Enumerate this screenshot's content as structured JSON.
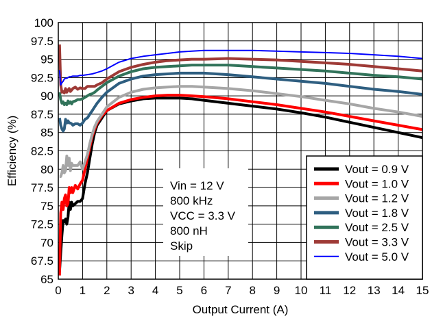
{
  "chart_data": {
    "type": "line",
    "title": "",
    "xlabel": "Output Current (A)",
    "ylabel": "Efficiency (%)",
    "xlim": [
      0,
      15
    ],
    "ylim": [
      65,
      100
    ],
    "grid": true,
    "x_ticks": [
      0,
      1,
      2,
      3,
      4,
      5,
      6,
      7,
      8,
      9,
      10,
      11,
      12,
      13,
      14,
      15
    ],
    "x_tick_labels": [
      "0",
      "1",
      "2",
      "3",
      "4",
      "5",
      "6",
      "7",
      "8",
      "9",
      "10",
      "11",
      "12",
      "13",
      "14",
      "15"
    ],
    "y_ticks": [
      65,
      67.5,
      70,
      72.5,
      75,
      77.5,
      80,
      82.5,
      85,
      87.5,
      90,
      92.5,
      95,
      97.5,
      100
    ],
    "y_tick_labels": [
      "65",
      "67.5",
      "70",
      "72.5",
      "75",
      "77.5",
      "80",
      "82.5",
      "85",
      "87.5",
      "90",
      "92.5",
      "95",
      "97.5",
      "100"
    ],
    "annotation": [
      "Vin = 12 V",
      "800 kHz",
      "VCC = 3.3 V",
      "800 nH",
      "Skip"
    ],
    "legend_position": "bottom-right",
    "series": [
      {
        "name": "Vout = 0.9 V",
        "color": "#000000",
        "x": [
          0.05,
          0.1,
          0.15,
          0.2,
          0.25,
          0.3,
          0.35,
          0.4,
          0.45,
          0.5,
          0.55,
          0.6,
          0.7,
          0.8,
          0.9,
          1.0,
          1.1,
          1.2,
          1.3,
          1.4,
          1.5,
          1.6,
          1.8,
          2.0,
          2.5,
          3.0,
          3.5,
          4.0,
          4.5,
          5.0,
          5.5,
          6.0,
          7.0,
          8.0,
          9.0,
          10.0,
          11.0,
          12.0,
          13.0,
          14.0,
          15.0
        ],
        "y": [
          66.0,
          68.5,
          71.0,
          73.0,
          72.8,
          73.2,
          72.5,
          73.5,
          75.5,
          74.5,
          75.5,
          75.0,
          75.3,
          75.6,
          75.6,
          76.0,
          78.0,
          79.5,
          81.5,
          83.5,
          85.0,
          86.0,
          87.0,
          88.0,
          88.9,
          89.3,
          89.6,
          89.7,
          89.7,
          89.7,
          89.6,
          89.4,
          89.0,
          88.6,
          88.2,
          87.7,
          87.1,
          86.4,
          85.7,
          85.0,
          84.3
        ]
      },
      {
        "name": "Vout = 1.0 V",
        "color": "#ff0000",
        "x": [
          0.05,
          0.1,
          0.15,
          0.2,
          0.25,
          0.3,
          0.35,
          0.4,
          0.45,
          0.5,
          0.55,
          0.6,
          0.7,
          0.8,
          0.9,
          1.0,
          1.1,
          1.2,
          1.3,
          1.4,
          1.5,
          1.6,
          1.8,
          2.0,
          2.5,
          3.0,
          3.5,
          4.0,
          4.5,
          5.0,
          5.5,
          6.0,
          7.0,
          8.0,
          9.0,
          10.0,
          11.0,
          12.0,
          13.0,
          14.0,
          15.0
        ],
        "y": [
          65.5,
          74.0,
          75.5,
          74.5,
          76.0,
          76.5,
          75.0,
          75.3,
          77.5,
          76.8,
          77.5,
          76.8,
          77.8,
          77.3,
          78.0,
          78.5,
          80.0,
          81.5,
          83.0,
          84.5,
          85.5,
          86.3,
          87.3,
          88.0,
          89.0,
          89.5,
          89.8,
          90.0,
          90.1,
          90.1,
          90.0,
          89.9,
          89.6,
          89.2,
          88.8,
          88.3,
          87.8,
          87.2,
          86.6,
          86.0,
          85.4
        ]
      },
      {
        "name": "Vout = 1.2 V",
        "color": "#a6a6a6",
        "x": [
          0.05,
          0.1,
          0.15,
          0.2,
          0.25,
          0.3,
          0.35,
          0.4,
          0.45,
          0.5,
          0.55,
          0.6,
          0.7,
          0.8,
          0.9,
          1.0,
          1.1,
          1.2,
          1.3,
          1.4,
          1.5,
          1.6,
          1.8,
          2.0,
          2.5,
          3.0,
          3.5,
          4.0,
          4.5,
          5.0,
          5.5,
          6.0,
          7.0,
          8.0,
          9.0,
          10.0,
          11.0,
          12.0,
          13.0,
          14.0,
          15.0
        ],
        "y": [
          79.0,
          79.0,
          79.5,
          80.5,
          79.5,
          79.8,
          81.8,
          80.5,
          81.5,
          79.8,
          80.8,
          80.5,
          80.5,
          80.5,
          81.0,
          80.0,
          81.0,
          82.0,
          83.5,
          84.8,
          85.8,
          86.5,
          87.5,
          88.5,
          89.8,
          90.5,
          90.9,
          91.1,
          91.2,
          91.3,
          91.3,
          91.2,
          91.0,
          90.7,
          90.3,
          89.9,
          89.4,
          88.9,
          88.3,
          87.8,
          87.2
        ]
      },
      {
        "name": "Vout = 1.8 V",
        "color": "#2e5e80",
        "x": [
          0.05,
          0.1,
          0.15,
          0.2,
          0.25,
          0.3,
          0.35,
          0.4,
          0.45,
          0.5,
          0.55,
          0.6,
          0.7,
          0.8,
          0.9,
          1.0,
          1.1,
          1.2,
          1.3,
          1.4,
          1.5,
          1.6,
          1.8,
          2.0,
          2.5,
          3.0,
          3.5,
          4.0,
          4.5,
          5.0,
          5.5,
          6.0,
          7.0,
          8.0,
          9.0,
          10.0,
          11.0,
          12.0,
          13.0,
          14.0,
          15.0
        ],
        "y": [
          87.0,
          86.0,
          85.5,
          85.2,
          85.5,
          86.8,
          86.3,
          86.6,
          86.3,
          86.3,
          86.2,
          86.0,
          86.2,
          86.2,
          86.0,
          86.3,
          86.8,
          87.0,
          87.5,
          88.0,
          88.5,
          89.0,
          89.8,
          90.5,
          91.7,
          92.3,
          92.7,
          92.9,
          93.0,
          93.1,
          93.1,
          93.1,
          92.9,
          92.6,
          92.3,
          92.0,
          91.7,
          91.3,
          90.9,
          90.6,
          90.2
        ]
      },
      {
        "name": "Vout = 2.5 V",
        "color": "#31735a",
        "x": [
          0.05,
          0.1,
          0.15,
          0.2,
          0.25,
          0.3,
          0.35,
          0.4,
          0.45,
          0.5,
          0.55,
          0.6,
          0.7,
          0.8,
          0.9,
          1.0,
          1.1,
          1.2,
          1.3,
          1.4,
          1.5,
          1.6,
          1.8,
          2.0,
          2.5,
          3.0,
          3.5,
          4.0,
          4.5,
          5.0,
          5.5,
          6.0,
          7.0,
          8.0,
          9.0,
          10.0,
          11.0,
          12.0,
          13.0,
          14.0,
          15.0
        ],
        "y": [
          90.5,
          89.5,
          89.0,
          89.2,
          88.8,
          89.0,
          88.8,
          89.3,
          89.0,
          89.2,
          88.9,
          89.2,
          89.3,
          89.5,
          89.5,
          89.6,
          89.8,
          90.0,
          90.2,
          90.3,
          90.5,
          90.8,
          91.3,
          91.8,
          92.7,
          93.3,
          93.7,
          93.9,
          94.0,
          94.1,
          94.2,
          94.2,
          94.2,
          94.0,
          93.8,
          93.6,
          93.4,
          93.1,
          92.8,
          92.6,
          92.3
        ]
      },
      {
        "name": "Vout = 3.3 V",
        "color": "#9e3a36",
        "x": [
          0.05,
          0.1,
          0.15,
          0.2,
          0.25,
          0.3,
          0.35,
          0.4,
          0.45,
          0.5,
          0.55,
          0.6,
          0.7,
          0.8,
          0.9,
          1.0,
          1.1,
          1.2,
          1.3,
          1.4,
          1.5,
          1.6,
          1.8,
          2.0,
          2.5,
          3.0,
          3.5,
          4.0,
          4.5,
          5.0,
          5.5,
          6.0,
          7.0,
          8.0,
          9.0,
          10.0,
          11.0,
          12.0,
          13.0,
          14.0,
          15.0
        ],
        "y": [
          97.0,
          91.5,
          90.5,
          90.6,
          90.4,
          91.0,
          90.5,
          90.8,
          91.0,
          90.6,
          90.8,
          91.0,
          91.2,
          90.9,
          91.1,
          91.0,
          91.0,
          91.3,
          91.3,
          91.3,
          91.3,
          91.5,
          91.8,
          92.3,
          93.3,
          93.9,
          94.3,
          94.6,
          94.8,
          94.9,
          95.0,
          95.0,
          95.1,
          95.0,
          94.9,
          94.7,
          94.5,
          94.3,
          94.0,
          93.7,
          93.4
        ]
      },
      {
        "name": "Vout = 5.0 V",
        "color": "#0000ff",
        "x": [
          0.05,
          0.1,
          0.15,
          0.2,
          0.25,
          0.3,
          0.35,
          0.4,
          0.45,
          0.5,
          0.6,
          0.7,
          0.8,
          0.9,
          1.0,
          1.2,
          1.4,
          1.6,
          1.8,
          2.0,
          2.5,
          3.0,
          3.5,
          4.0,
          4.5,
          5.0,
          5.5,
          6.0,
          7.0,
          8.0,
          9.0,
          10.0,
          11.0,
          12.0,
          13.0,
          14.0,
          15.0
        ],
        "y": [
          93.5,
          91.5,
          91.8,
          92.0,
          92.3,
          92.4,
          92.4,
          92.5,
          92.6,
          92.6,
          92.7,
          92.7,
          92.7,
          92.8,
          92.8,
          92.9,
          93.0,
          93.2,
          93.4,
          93.7,
          94.6,
          95.1,
          95.4,
          95.6,
          95.8,
          96.0,
          96.1,
          96.2,
          96.2,
          96.2,
          96.1,
          96.0,
          95.9,
          95.8,
          95.6,
          95.4,
          95.1
        ]
      }
    ]
  }
}
